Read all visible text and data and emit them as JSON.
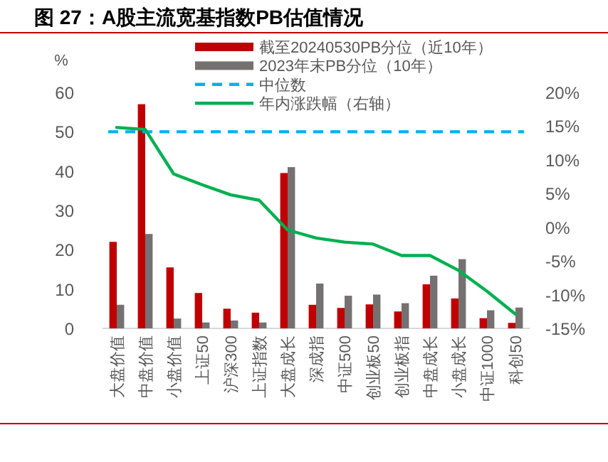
{
  "chart_data": {
    "type": "bar",
    "title": "图 27：A股主流宽基指数PB估值情况",
    "ylabel": "%",
    "categories": [
      "大盘价值",
      "中盘价值",
      "小盘价值",
      "上证50",
      "沪深300",
      "上证指数",
      "大盘成长",
      "深成指",
      "中证500",
      "创业板50",
      "创业板指",
      "中盘成长",
      "小盘成长",
      "中证1000",
      "科创50"
    ],
    "series": [
      {
        "name": "截至20240530PB分位（近10年）",
        "color": "#c00000",
        "values": [
          22,
          57,
          15.5,
          9,
          5,
          4,
          39.5,
          6,
          5.2,
          6.1,
          4.3,
          11.2,
          7.6,
          2.6,
          1.4
        ]
      },
      {
        "name": "2023年末PB分位（10年）",
        "color": "#767171",
        "values": [
          6,
          24,
          2.5,
          1.5,
          2,
          1.5,
          41,
          11.4,
          8.3,
          8.6,
          6.4,
          13.4,
          17.6,
          4.6,
          5.3
        ]
      },
      {
        "name": "年内涨跌幅（右轴）",
        "type": "line",
        "axis": "y2",
        "color": "#00b050",
        "values": [
          14.8,
          14.5,
          7.9,
          6.3,
          4.8,
          4.0,
          -0.4,
          -1.6,
          -2.2,
          -2.5,
          -4.2,
          -4.2,
          -6.4,
          -9.5,
          -12.9
        ]
      }
    ],
    "ref_lines": [
      {
        "axis": "y",
        "value": 50,
        "label": "中位数",
        "color": "#00b0f0",
        "line_style": "dashed"
      }
    ],
    "ylim": [
      0,
      60
    ],
    "yticks": [
      0,
      10,
      20,
      30,
      40,
      50,
      60
    ],
    "y2lim": [
      -15,
      20
    ],
    "y2ticks": [
      {
        "value": -15,
        "label": "-15%"
      },
      {
        "value": -10,
        "label": "-10%"
      },
      {
        "value": -5,
        "label": "-5%"
      },
      {
        "value": 0,
        "label": "0%"
      },
      {
        "value": 5,
        "label": "5%"
      },
      {
        "value": 10,
        "label": "10%"
      },
      {
        "value": 15,
        "label": "15%"
      },
      {
        "value": 20,
        "label": "20%"
      }
    ],
    "legend": "top"
  }
}
